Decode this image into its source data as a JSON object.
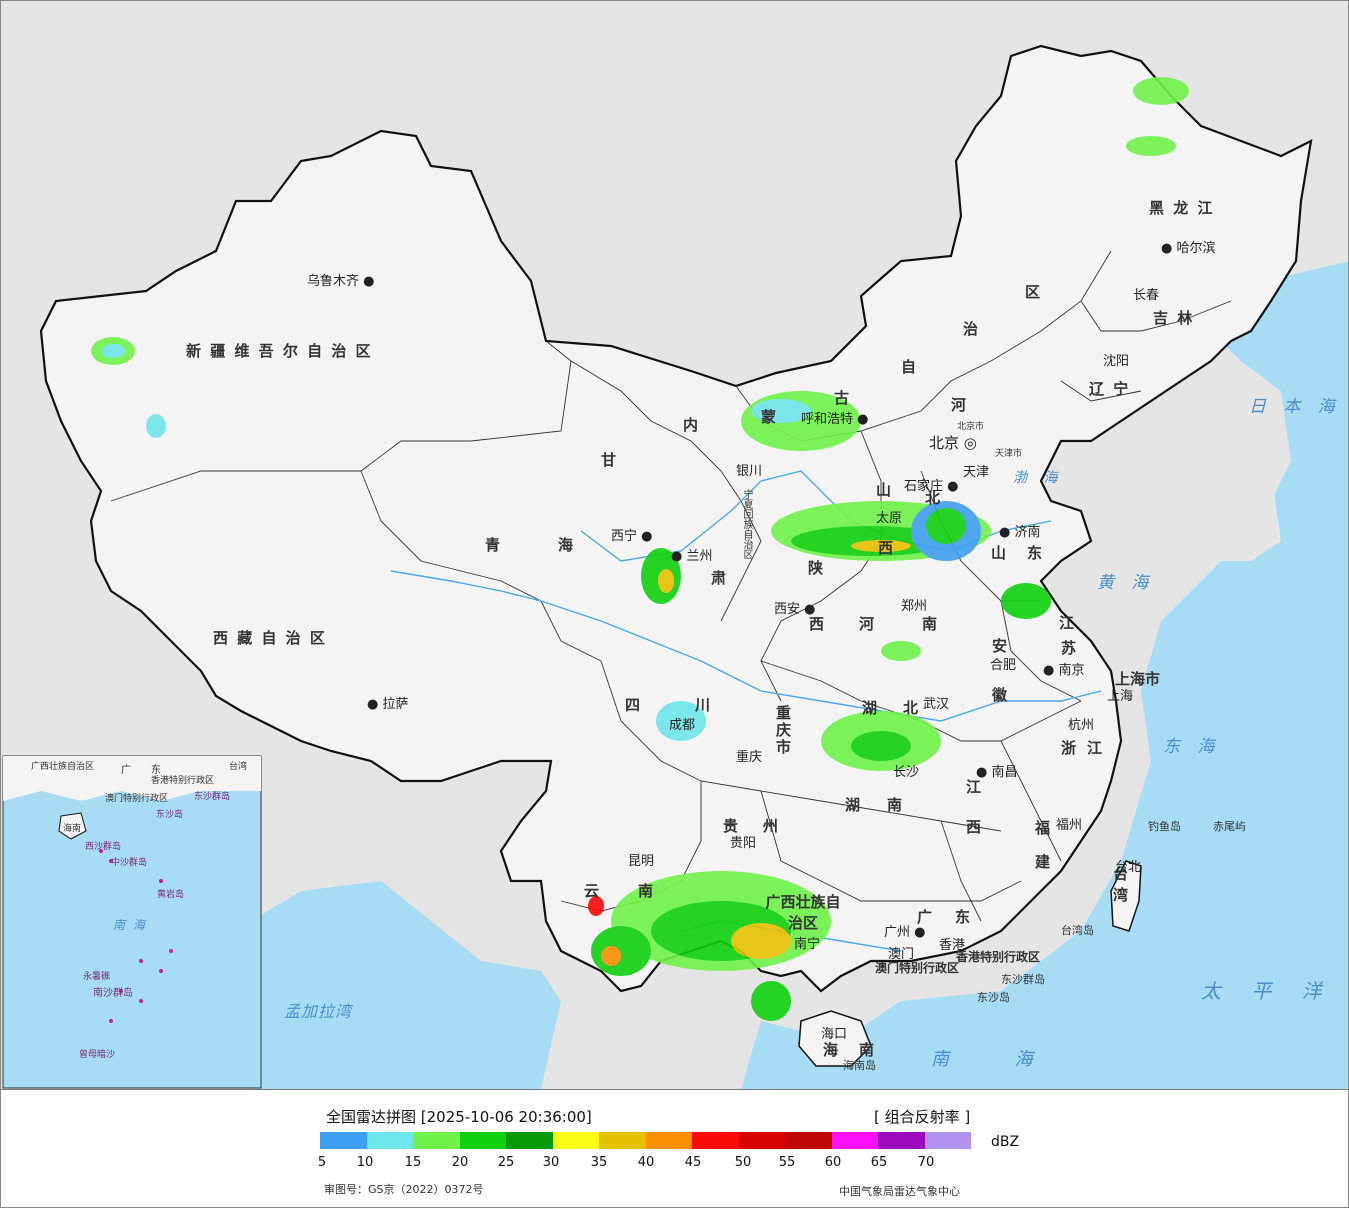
{
  "map": {
    "provinces": [
      "新 疆 维 吾 尔 自 治 区",
      "西 藏 自 治 区",
      "青",
      "海",
      "甘",
      "肃",
      "内",
      "蒙",
      "古",
      "自",
      "治",
      "区",
      "黑 龙 江",
      "吉 林",
      "辽 宁",
      "河",
      "北",
      "山",
      "西",
      "陕",
      "西",
      "宁夏回族自治区",
      "四",
      "川",
      "重庆市",
      "云",
      "南",
      "贵",
      "州",
      "广西壮族自治区",
      "广",
      "东",
      "湖",
      "南",
      "湖",
      "北",
      "河",
      "南",
      "山",
      "东",
      "江",
      "苏",
      "安",
      "徽",
      "浙",
      "江",
      "江",
      "西",
      "福",
      "建",
      "海",
      "南",
      "上海市",
      "北京市",
      "天津市",
      "台 湾",
      "香港特别行政区",
      "澳门特别行政区"
    ],
    "cities": [
      "乌鲁木齐",
      "拉萨",
      "西宁",
      "兰州",
      "银川",
      "呼和浩特",
      "北京",
      "天津",
      "石家庄",
      "太原",
      "济南",
      "郑州",
      "西安",
      "成都",
      "重庆",
      "贵阳",
      "昆明",
      "南宁",
      "广州",
      "澳门",
      "香港",
      "长沙",
      "武汉",
      "南昌",
      "合肥",
      "南京",
      "上海",
      "杭州",
      "福州",
      "台北",
      "海口",
      "哈尔滨",
      "长春",
      "沈阳"
    ],
    "seas": [
      "日 本 海",
      "渤 海",
      "黄 海",
      "东 海",
      "太 平 洋",
      "南 海",
      "孟加拉湾"
    ],
    "islands": [
      "钓鱼岛",
      "赤尾屿",
      "台湾岛",
      "东沙群岛",
      "东沙岛",
      "海南岛"
    ],
    "inset": [
      "广西壮族自治区",
      "广",
      "东",
      "台湾",
      "香港特别行政区",
      "澳门特别行政区",
      "东沙群岛",
      "东沙岛",
      "海南",
      "西沙群岛",
      "中沙群岛",
      "黄岩岛",
      "南海",
      "南沙群岛",
      "永暑礁",
      "曾母暗沙"
    ]
  },
  "footer": {
    "title": "全国雷达拼图 [2025-10-06 20:36:00]",
    "product": "[ 组合反射率 ]",
    "unit": "dBZ",
    "ticks": [
      "5",
      "10",
      "15",
      "20",
      "25",
      "30",
      "35",
      "40",
      "45",
      "50",
      "55",
      "60",
      "65",
      "70"
    ],
    "approval": "审图号：GS京（2022）0372号",
    "agency": "中国气象局雷达气象中心"
  },
  "legend_colors": [
    "#3f9ff0",
    "#6ee6ea",
    "#70f24a",
    "#10d00f",
    "#0a9a08",
    "#fbfc16",
    "#e6c202",
    "#fb8f04",
    "#fb0a0a",
    "#d80303",
    "#c00707",
    "#fb10fa",
    "#9a0aba",
    "#ae92ee"
  ],
  "colors": {
    "ocean": "#a8dcf5",
    "land": "#f3f3f3",
    "outside": "#e6e6e6",
    "border": "#111111"
  }
}
